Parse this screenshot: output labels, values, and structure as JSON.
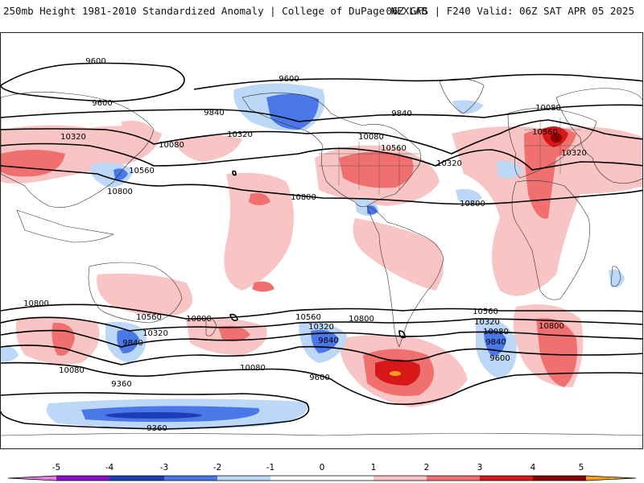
{
  "header": {
    "left": "250mb Height 1981-2010 Standardized Anomaly | College of DuPage NEXLAB",
    "right": "06Z GFS | F240 Valid: 06Z SAT APR 05 2025"
  },
  "contour_labels": [
    "9600",
    "9600",
    "9600",
    "9840",
    "9840",
    "10080",
    "10320",
    "10080",
    "10560",
    "10800",
    "10320",
    "10800",
    "10080",
    "10560",
    "10320",
    "10800",
    "10560",
    "10320",
    "10800",
    "10800",
    "10560",
    "10800",
    "10320",
    "10080",
    "9840",
    "10320",
    "10560",
    "10080",
    "9840",
    "10800",
    "10560",
    "10320",
    "10080",
    "9840",
    "9600",
    "9600",
    "9360",
    "9360"
  ],
  "anomaly_colors": {
    "neg5": "#e080e0",
    "neg4": "#8a10c8",
    "neg3": "#1e3cb4",
    "neg2": "#4a78e8",
    "neg1": "#bcd8f6",
    "zero": "#ffffff",
    "pos1": "#f8c4c4",
    "pos2": "#f07070",
    "pos3": "#d81818",
    "pos4": "#8a0000",
    "pos5": "#f0a020"
  },
  "colorbar": {
    "ticks": [
      "-5",
      "-4",
      "-3",
      "-2",
      "-1",
      "0",
      "1",
      "2",
      "3",
      "4",
      "5"
    ]
  }
}
